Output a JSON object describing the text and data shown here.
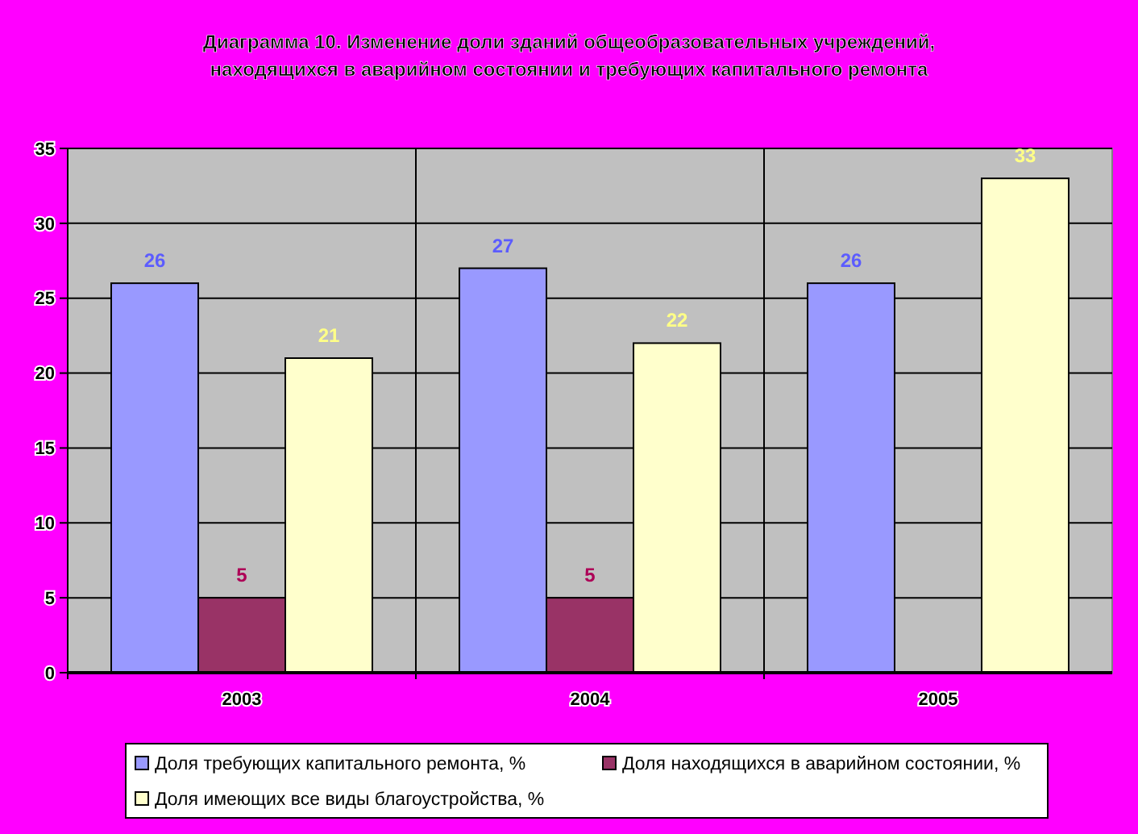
{
  "chart_data": {
    "type": "bar",
    "title": "Диаграмма 10. Изменение доли зданий общеобразовательных учреждений,\nнаходящихся в аварийном состоянии и требующих капитального ремонта",
    "categories": [
      "2003",
      "2004",
      "2005"
    ],
    "series": [
      {
        "name": "Доля требующих капитального ремонта, %",
        "color": "#9999ff",
        "values": [
          26,
          27,
          26
        ]
      },
      {
        "name": "Доля находящихся в аварийном состоянии, %",
        "color": "#993366",
        "values": [
          5,
          5,
          null
        ]
      },
      {
        "name": "Доля имеющих все виды благоустройства, %",
        "color": "#ffffcc",
        "values": [
          21,
          22,
          33
        ]
      }
    ],
    "ylim": [
      0,
      35
    ],
    "yticks": [
      0,
      5,
      10,
      15,
      20,
      25,
      30,
      35
    ],
    "grid": true,
    "data_labels": true,
    "legend": "bottom"
  }
}
